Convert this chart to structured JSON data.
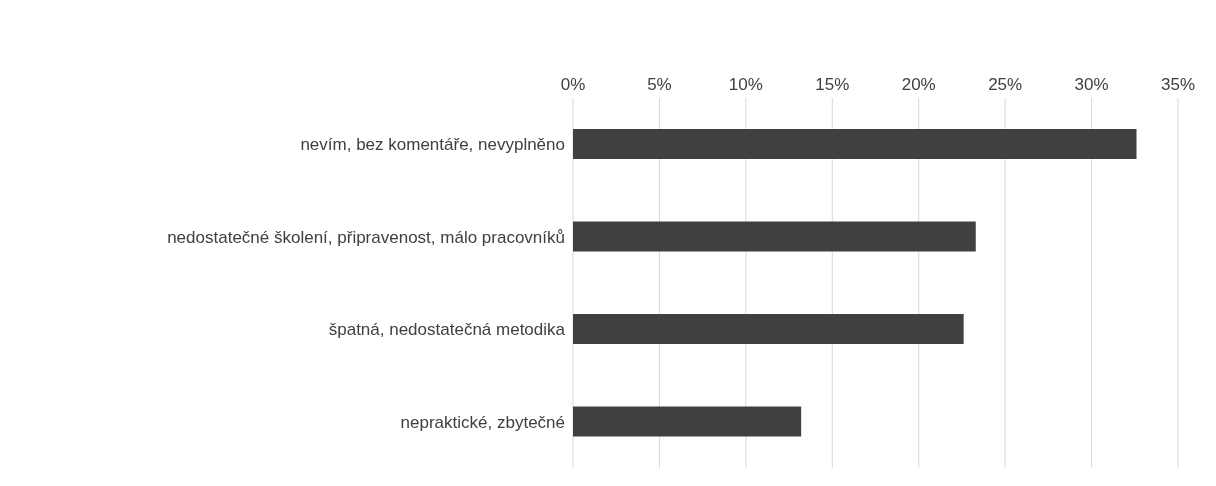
{
  "chart_data": {
    "type": "bar",
    "orientation": "horizontal",
    "categories": [
      "nevím, bez komentáře, nevyplněno",
      "nedostatečné školení, připravenost, málo pracovníků",
      "špatná, nedostatečná metodika",
      "nepraktické, zbytečné"
    ],
    "values": [
      32.6,
      23.3,
      22.6,
      13.2
    ],
    "color": "#404040",
    "xlim": [
      0,
      35
    ],
    "xticks": [
      {
        "value": 0,
        "label": "0%"
      },
      {
        "value": 5,
        "label": "5%"
      },
      {
        "value": 10,
        "label": "10%"
      },
      {
        "value": 15,
        "label": "15%"
      },
      {
        "value": 20,
        "label": "20%"
      },
      {
        "value": 25,
        "label": "25%"
      },
      {
        "value": 30,
        "label": "30%"
      },
      {
        "value": 35,
        "label": "35%"
      }
    ],
    "grid": "x"
  }
}
